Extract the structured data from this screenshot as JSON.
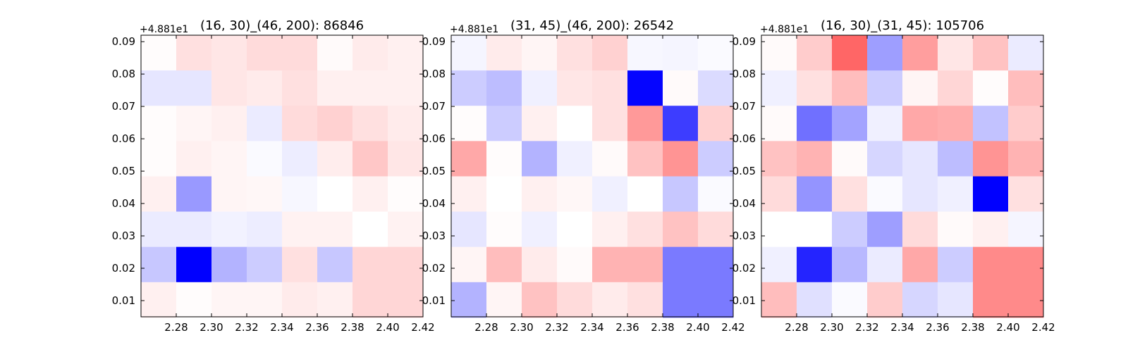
{
  "chart_data": [
    {
      "type": "heatmap",
      "title": "(16, 30)_(46, 200): 86846",
      "y_offset_label": "+4.881e1",
      "x_ticks": [
        "2.28",
        "2.30",
        "2.32",
        "2.34",
        "2.36",
        "2.38",
        "2.40",
        "2.42"
      ],
      "y_ticks": [
        "0.01",
        "0.02",
        "0.03",
        "0.04",
        "0.05",
        "0.06",
        "0.07",
        "0.08",
        "0.09"
      ],
      "xlim": [
        2.26,
        2.42
      ],
      "ylim": [
        0.005,
        0.092
      ],
      "color_scale": {
        "negative": "#0000ff",
        "zero": "#ffffff",
        "positive": "#ff0000",
        "vmin": -1,
        "vmax": 1
      },
      "rows_top_to_bottom": [
        [
          0.01,
          0.12,
          0.1,
          0.14,
          0.14,
          0.02,
          0.08,
          0.06
        ],
        [
          -0.1,
          -0.1,
          0.1,
          0.08,
          0.12,
          0.06,
          0.06,
          0.06
        ],
        [
          0.01,
          0.04,
          0.06,
          -0.08,
          0.14,
          0.18,
          0.12,
          0.08
        ],
        [
          0.01,
          0.06,
          0.04,
          -0.02,
          -0.07,
          0.07,
          0.22,
          0.1
        ],
        [
          0.06,
          -0.4,
          0.04,
          0.03,
          -0.03,
          0.0,
          0.06,
          0.01
        ],
        [
          -0.08,
          -0.08,
          -0.05,
          -0.07,
          0.05,
          0.05,
          0.0,
          0.05
        ],
        [
          -0.22,
          -1.0,
          -0.3,
          -0.2,
          0.12,
          -0.22,
          0.16,
          0.16
        ],
        [
          0.06,
          0.01,
          0.04,
          0.04,
          0.08,
          0.06,
          0.16,
          0.16
        ]
      ]
    },
    {
      "type": "heatmap",
      "title": "(31, 45)_(46, 200): 26542",
      "y_offset_label": "+4.881e1",
      "x_ticks": [
        "2.28",
        "2.30",
        "2.32",
        "2.34",
        "2.36",
        "2.38",
        "2.40",
        "2.42"
      ],
      "y_ticks": [
        "0.01",
        "0.02",
        "0.03",
        "0.04",
        "0.05",
        "0.06",
        "0.07",
        "0.08",
        "0.09"
      ],
      "xlim": [
        2.26,
        2.42
      ],
      "ylim": [
        0.005,
        0.092
      ],
      "color_scale": {
        "negative": "#0000ff",
        "zero": "#ffffff",
        "positive": "#ff0000",
        "vmin": -1,
        "vmax": 1
      },
      "rows_top_to_bottom": [
        [
          -0.04,
          0.08,
          0.04,
          0.12,
          0.18,
          -0.03,
          -0.04,
          -0.02
        ],
        [
          -0.2,
          -0.26,
          -0.06,
          0.1,
          0.12,
          -0.98,
          0.02,
          -0.14
        ],
        [
          0.01,
          -0.2,
          0.06,
          0.0,
          0.12,
          0.4,
          -0.76,
          0.18
        ],
        [
          0.34,
          0.01,
          -0.3,
          -0.06,
          0.02,
          0.24,
          0.42,
          -0.2
        ],
        [
          0.06,
          0.0,
          0.06,
          0.03,
          -0.06,
          0.0,
          -0.22,
          -0.02
        ],
        [
          -0.1,
          0.01,
          -0.06,
          0.0,
          0.06,
          0.12,
          0.24,
          0.14
        ],
        [
          0.04,
          0.26,
          0.08,
          0.02,
          0.3,
          0.3,
          -0.52,
          -0.52
        ],
        [
          -0.3,
          0.04,
          0.24,
          0.14,
          0.08,
          0.12,
          -0.52,
          -0.52
        ]
      ]
    },
    {
      "type": "heatmap",
      "title": "(16, 30)_(31, 45): 105706",
      "y_offset_label": "+4.881e1",
      "x_ticks": [
        "2.28",
        "2.30",
        "2.32",
        "2.34",
        "2.36",
        "2.38",
        "2.40",
        "2.42"
      ],
      "y_ticks": [
        "0.01",
        "0.02",
        "0.03",
        "0.04",
        "0.05",
        "0.06",
        "0.07",
        "0.08",
        "0.09"
      ],
      "xlim": [
        2.26,
        2.42
      ],
      "ylim": [
        0.005,
        0.092
      ],
      "color_scale": {
        "negative": "#0000ff",
        "zero": "#ffffff",
        "positive": "#ff0000",
        "vmin": -1,
        "vmax": 1
      },
      "rows_top_to_bottom": [
        [
          0.02,
          0.2,
          0.6,
          -0.38,
          0.38,
          0.1,
          0.24,
          -0.08
        ],
        [
          -0.06,
          0.12,
          0.26,
          -0.2,
          0.04,
          0.16,
          0.01,
          0.26
        ],
        [
          0.02,
          -0.56,
          -0.36,
          -0.06,
          0.34,
          0.32,
          -0.24,
          0.2
        ],
        [
          0.24,
          0.3,
          0.02,
          -0.16,
          -0.1,
          -0.26,
          0.42,
          0.3
        ],
        [
          0.14,
          -0.42,
          0.12,
          -0.02,
          -0.1,
          -0.06,
          -1.0,
          0.12
        ],
        [
          0.0,
          0.0,
          -0.2,
          -0.38,
          0.14,
          0.02,
          0.06,
          -0.04
        ],
        [
          -0.06,
          -0.86,
          -0.28,
          -0.08,
          0.34,
          -0.2,
          0.46,
          0.46
        ],
        [
          0.26,
          -0.12,
          -0.02,
          0.2,
          -0.16,
          -0.1,
          0.46,
          0.46
        ]
      ]
    }
  ]
}
